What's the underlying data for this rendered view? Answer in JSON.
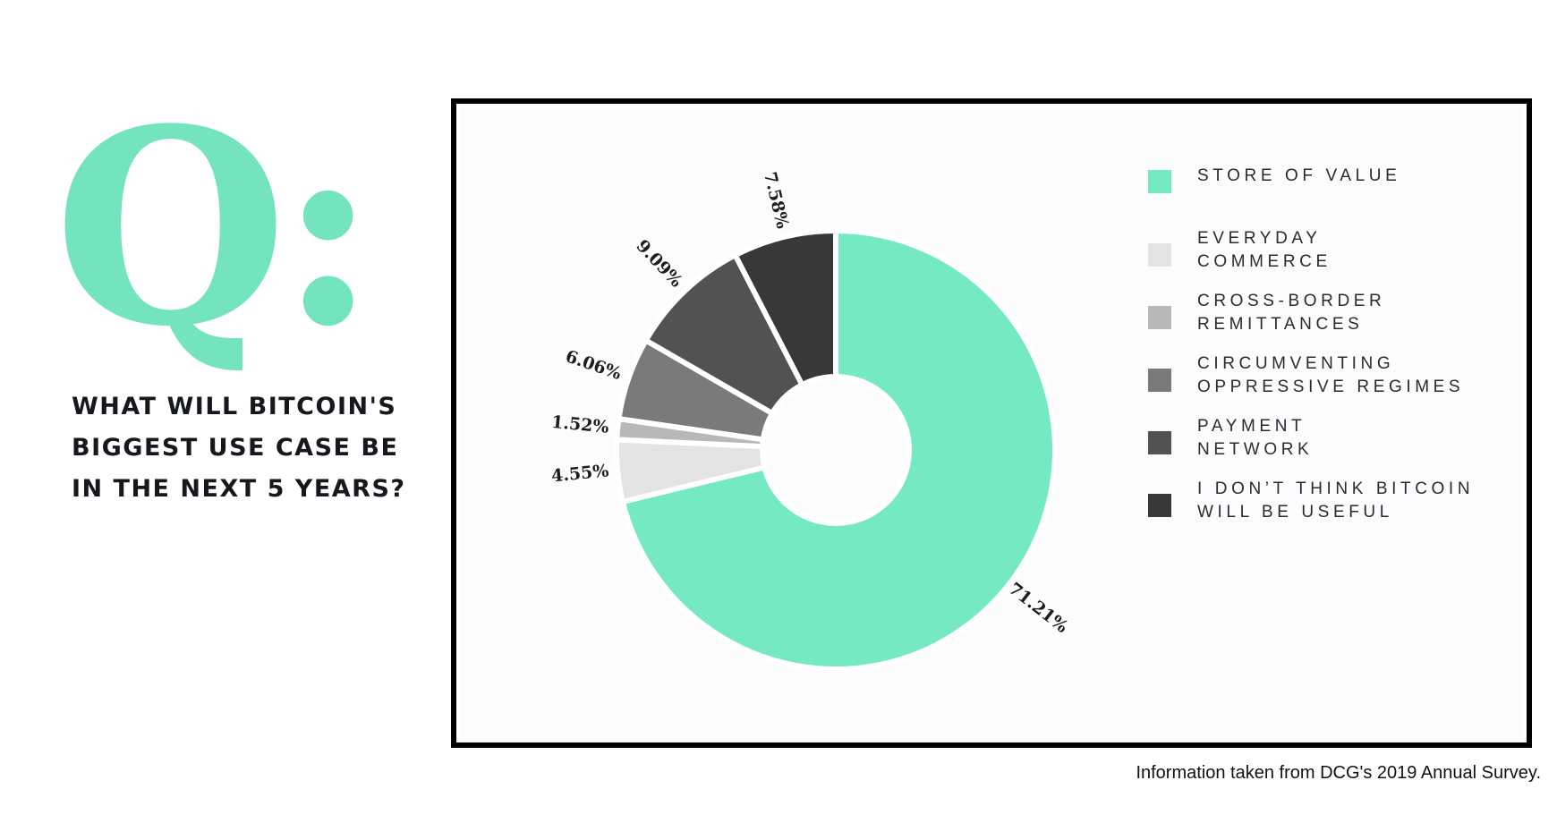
{
  "left": {
    "q_mark": "Q:",
    "question_lines": [
      "WHAT WILL BITCOIN'S",
      "BIGGEST USE CASE BE",
      "IN THE NEXT 5 YEARS?"
    ]
  },
  "chart_data": {
    "type": "pie",
    "donut": true,
    "labels": [
      "STORE OF VALUE",
      "EVERYDAY\nCOMMERCE",
      "CROSS-BORDER\nREMITTANCES",
      "CIRCUMVENTING\nOPPRESSIVE REGIMES",
      "PAYMENT\nNETWORK",
      "I DON’T THINK BITCOIN\nWILL BE USEFUL"
    ],
    "values": [
      71.21,
      4.55,
      1.52,
      6.06,
      9.09,
      7.58
    ],
    "value_labels": [
      "71.21%",
      "4.55%",
      "1.52%",
      "6.06%",
      "9.09%",
      "7.58%"
    ],
    "colors": [
      "#75e9c3",
      "#e3e3e5",
      "#b8b8ba",
      "#7a797c",
      "#525154",
      "#38373a"
    ],
    "legend_position": "right",
    "direction": "clockwise from top"
  },
  "source": "Information taken from DCG's 2019 Annual Survey."
}
